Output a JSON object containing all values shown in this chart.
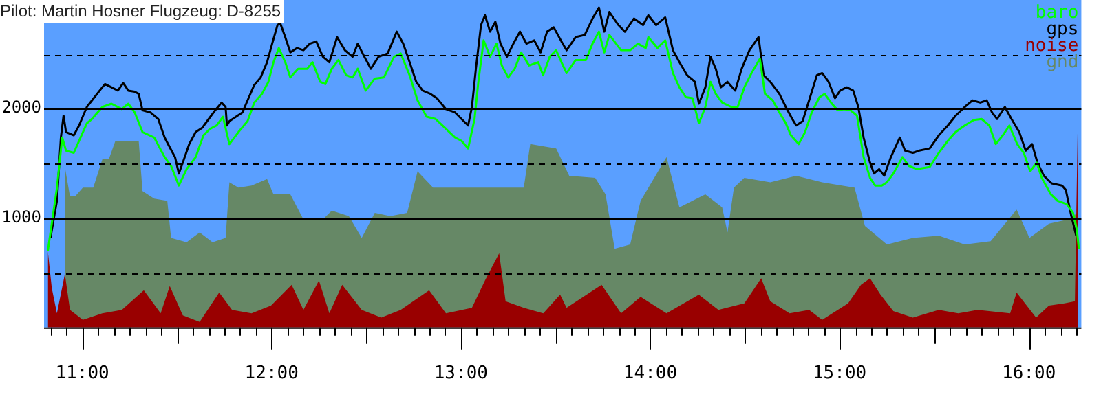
{
  "chart_data": {
    "type": "line",
    "title": "Pilot: Martin Hosner Flugzeug: D-8255",
    "xlim": [
      10.798,
      16.277
    ],
    "ylim": [
      0,
      3000
    ],
    "xticks": [
      {
        "value": 10.8333,
        "label": null
      },
      {
        "value": 10.9167,
        "label": null
      },
      {
        "value": 11,
        "label": "11:00"
      },
      {
        "value": 11.0833,
        "label": null
      },
      {
        "value": 11.1667,
        "label": null
      },
      {
        "value": 11.25,
        "label": null
      },
      {
        "value": 11.3333,
        "label": null
      },
      {
        "value": 11.4167,
        "label": null
      },
      {
        "value": 11.5,
        "label": null
      },
      {
        "value": 11.5833,
        "label": null
      },
      {
        "value": 11.6667,
        "label": null
      },
      {
        "value": 11.75,
        "label": null
      },
      {
        "value": 11.8333,
        "label": null
      },
      {
        "value": 11.9167,
        "label": null
      },
      {
        "value": 12,
        "label": "12:00"
      },
      {
        "value": 12.0833,
        "label": null
      },
      {
        "value": 12.1667,
        "label": null
      },
      {
        "value": 12.25,
        "label": null
      },
      {
        "value": 12.3333,
        "label": null
      },
      {
        "value": 12.4167,
        "label": null
      },
      {
        "value": 12.5,
        "label": null
      },
      {
        "value": 12.5833,
        "label": null
      },
      {
        "value": 12.6667,
        "label": null
      },
      {
        "value": 12.75,
        "label": null
      },
      {
        "value": 12.8333,
        "label": null
      },
      {
        "value": 12.9167,
        "label": null
      },
      {
        "value": 13,
        "label": "13:00"
      },
      {
        "value": 13.0833,
        "label": null
      },
      {
        "value": 13.1667,
        "label": null
      },
      {
        "value": 13.25,
        "label": null
      },
      {
        "value": 13.3333,
        "label": null
      },
      {
        "value": 13.4167,
        "label": null
      },
      {
        "value": 13.5,
        "label": null
      },
      {
        "value": 13.5833,
        "label": null
      },
      {
        "value": 13.6667,
        "label": null
      },
      {
        "value": 13.75,
        "label": null
      },
      {
        "value": 13.8333,
        "label": null
      },
      {
        "value": 13.9167,
        "label": null
      },
      {
        "value": 14,
        "label": "14:00"
      },
      {
        "value": 14.0833,
        "label": null
      },
      {
        "value": 14.1667,
        "label": null
      },
      {
        "value": 14.25,
        "label": null
      },
      {
        "value": 14.3333,
        "label": null
      },
      {
        "value": 14.4167,
        "label": null
      },
      {
        "value": 14.5,
        "label": null
      },
      {
        "value": 14.5833,
        "label": null
      },
      {
        "value": 14.6667,
        "label": null
      },
      {
        "value": 14.75,
        "label": null
      },
      {
        "value": 14.8333,
        "label": null
      },
      {
        "value": 14.9167,
        "label": null
      },
      {
        "value": 15,
        "label": "15:00"
      },
      {
        "value": 15.0833,
        "label": null
      },
      {
        "value": 15.1667,
        "label": null
      },
      {
        "value": 15.25,
        "label": null
      },
      {
        "value": 15.3333,
        "label": null
      },
      {
        "value": 15.4167,
        "label": null
      },
      {
        "value": 15.5,
        "label": null
      },
      {
        "value": 15.5833,
        "label": null
      },
      {
        "value": 15.6667,
        "label": null
      },
      {
        "value": 15.75,
        "label": null
      },
      {
        "value": 15.8333,
        "label": null
      },
      {
        "value": 15.9167,
        "label": null
      },
      {
        "value": 16,
        "label": "16:00"
      },
      {
        "value": 16.0833,
        "label": null
      },
      {
        "value": 16.1667,
        "label": null
      },
      {
        "value": 16.25,
        "label": null
      }
    ],
    "yticks": [
      {
        "value": 500,
        "label": null
      },
      1000,
      {
        "value": 1500,
        "label": null
      },
      2000,
      {
        "value": 2500,
        "label": null
      }
    ],
    "grid": "y",
    "legend": "top right",
    "series": [
      {
        "name": "baro",
        "color": "#00ff00",
        "type": "line",
        "x": [
          10.818,
          10.866,
          10.894,
          10.914,
          10.955,
          11.024,
          11.051,
          11.106,
          11.154,
          11.209,
          11.243,
          11.277,
          11.318,
          11.38,
          11.435,
          11.469,
          11.51,
          11.551,
          11.599,
          11.64,
          11.675,
          11.709,
          11.743,
          11.777,
          11.825,
          11.873,
          11.908,
          11.949,
          11.983,
          12.01,
          12.038,
          12.072,
          12.099,
          12.14,
          12.188,
          12.216,
          12.257,
          12.284,
          12.318,
          12.353,
          12.394,
          12.428,
          12.455,
          12.497,
          12.545,
          12.593,
          12.647,
          12.682,
          12.729,
          12.771,
          12.819,
          12.866,
          12.921,
          12.969,
          13.003,
          13.038,
          13.072,
          13.092,
          13.12,
          13.154,
          13.188,
          13.216,
          13.25,
          13.284,
          13.318,
          13.36,
          13.408,
          13.434,
          13.469,
          13.503,
          13.531,
          13.558,
          13.606,
          13.66,
          13.695,
          13.729,
          13.757,
          13.784,
          13.846,
          13.894,
          13.935,
          13.976,
          13.99,
          14.038,
          14.079,
          14.12,
          14.154,
          14.188,
          14.223,
          14.257,
          14.291,
          14.318,
          14.346,
          14.38,
          14.428,
          14.462,
          14.497,
          14.538,
          14.579,
          14.606,
          14.647,
          14.682,
          14.716,
          14.743,
          14.784,
          14.818,
          14.853,
          14.894,
          14.921,
          14.955,
          14.99,
          15.024,
          15.058,
          15.092,
          15.127,
          15.161,
          15.188,
          15.223,
          15.25,
          15.284,
          15.332,
          15.366,
          15.408,
          15.476,
          15.524,
          15.572,
          15.613,
          15.661,
          15.709,
          15.75,
          15.791,
          15.825,
          15.862,
          15.897,
          15.938,
          15.973,
          16.007,
          16.041,
          16.068,
          16.116,
          16.151,
          16.199,
          16.233,
          16.253,
          16.264
        ],
        "values": [
          700,
          1280,
          1740,
          1620,
          1600,
          1870,
          1910,
          2020,
          2050,
          2000,
          2050,
          1970,
          1790,
          1740,
          1560,
          1480,
          1300,
          1450,
          1560,
          1760,
          1820,
          1850,
          1930,
          1680,
          1790,
          1890,
          2060,
          2140,
          2250,
          2430,
          2560,
          2430,
          2290,
          2370,
          2370,
          2430,
          2250,
          2230,
          2370,
          2450,
          2310,
          2290,
          2370,
          2170,
          2280,
          2290,
          2480,
          2510,
          2310,
          2080,
          1930,
          1910,
          1820,
          1740,
          1710,
          1640,
          1910,
          2250,
          2630,
          2480,
          2600,
          2400,
          2290,
          2370,
          2520,
          2400,
          2430,
          2310,
          2480,
          2540,
          2430,
          2330,
          2450,
          2450,
          2600,
          2710,
          2520,
          2680,
          2540,
          2540,
          2600,
          2560,
          2660,
          2560,
          2630,
          2330,
          2200,
          2110,
          2100,
          1870,
          2020,
          2250,
          2140,
          2060,
          2020,
          2020,
          2200,
          2340,
          2460,
          2140,
          2080,
          1970,
          1870,
          1760,
          1680,
          1790,
          1970,
          2110,
          2140,
          2060,
          1990,
          2000,
          1990,
          1940,
          1560,
          1370,
          1300,
          1300,
          1330,
          1410,
          1560,
          1480,
          1450,
          1470,
          1600,
          1710,
          1790,
          1850,
          1900,
          1910,
          1850,
          1680,
          1760,
          1850,
          1680,
          1600,
          1430,
          1510,
          1370,
          1220,
          1160,
          1130,
          1050,
          900,
          720
        ]
      },
      {
        "name": "gps",
        "color": "#000000",
        "type": "line",
        "x": [
          10.832,
          10.866,
          10.887,
          10.901,
          10.914,
          10.955,
          10.983,
          11.024,
          11.051,
          11.092,
          11.12,
          11.154,
          11.188,
          11.216,
          11.243,
          11.277,
          11.298,
          11.318,
          11.36,
          11.401,
          11.435,
          11.462,
          11.49,
          11.51,
          11.531,
          11.565,
          11.599,
          11.634,
          11.668,
          11.702,
          11.736,
          11.757,
          11.764,
          11.777,
          11.812,
          11.846,
          11.873,
          11.908,
          11.942,
          11.976,
          12.003,
          12.031,
          12.045,
          12.072,
          12.099,
          12.134,
          12.168,
          12.202,
          12.236,
          12.271,
          12.305,
          12.346,
          12.387,
          12.428,
          12.455,
          12.49,
          12.524,
          12.565,
          12.613,
          12.661,
          12.695,
          12.729,
          12.764,
          12.798,
          12.839,
          12.873,
          12.921,
          12.969,
          13.003,
          13.038,
          13.058,
          13.079,
          13.106,
          13.127,
          13.154,
          13.182,
          13.209,
          13.243,
          13.277,
          13.312,
          13.346,
          13.387,
          13.421,
          13.455,
          13.49,
          13.531,
          13.558,
          13.606,
          13.654,
          13.695,
          13.729,
          13.757,
          13.784,
          13.832,
          13.866,
          13.914,
          13.962,
          13.99,
          14.031,
          14.079,
          14.12,
          14.154,
          14.195,
          14.236,
          14.257,
          14.291,
          14.318,
          14.346,
          14.373,
          14.408,
          14.449,
          14.483,
          14.524,
          14.572,
          14.599,
          14.634,
          14.682,
          14.716,
          14.75,
          14.771,
          14.805,
          14.839,
          14.88,
          14.908,
          14.942,
          14.976,
          15.003,
          15.038,
          15.072,
          15.099,
          15.127,
          15.161,
          15.182,
          15.209,
          15.236,
          15.271,
          15.318,
          15.346,
          15.387,
          15.421,
          15.476,
          15.524,
          15.572,
          15.613,
          15.661,
          15.702,
          15.743,
          15.777,
          15.805,
          15.832,
          15.873,
          15.908,
          15.949,
          15.983,
          16.017,
          16.045,
          16.079,
          16.12,
          16.175,
          16.195,
          16.223,
          16.25
        ],
        "values": [
          820,
          1160,
          1740,
          1940,
          1790,
          1760,
          1850,
          2020,
          2080,
          2170,
          2230,
          2200,
          2170,
          2240,
          2170,
          2160,
          2140,
          1990,
          1970,
          1910,
          1740,
          1650,
          1560,
          1410,
          1510,
          1680,
          1790,
          1830,
          1910,
          1990,
          2060,
          2020,
          1850,
          1890,
          1930,
          1970,
          2080,
          2220,
          2290,
          2430,
          2600,
          2770,
          2790,
          2660,
          2520,
          2560,
          2540,
          2600,
          2620,
          2480,
          2430,
          2660,
          2540,
          2480,
          2600,
          2480,
          2370,
          2480,
          2510,
          2710,
          2600,
          2430,
          2250,
          2170,
          2140,
          2100,
          2000,
          1970,
          1910,
          1850,
          2020,
          2370,
          2770,
          2860,
          2710,
          2800,
          2600,
          2480,
          2600,
          2710,
          2600,
          2630,
          2520,
          2710,
          2750,
          2620,
          2540,
          2660,
          2680,
          2830,
          2930,
          2710,
          2890,
          2770,
          2710,
          2830,
          2770,
          2860,
          2770,
          2840,
          2540,
          2430,
          2310,
          2250,
          2050,
          2200,
          2480,
          2370,
          2200,
          2250,
          2170,
          2370,
          2540,
          2660,
          2310,
          2250,
          2140,
          2020,
          1910,
          1850,
          1890,
          2080,
          2310,
          2330,
          2250,
          2100,
          2170,
          2200,
          2170,
          2020,
          1740,
          1510,
          1410,
          1450,
          1390,
          1560,
          1740,
          1620,
          1600,
          1620,
          1640,
          1760,
          1850,
          1940,
          2020,
          2080,
          2060,
          2080,
          1970,
          1910,
          2020,
          1910,
          1790,
          1620,
          1680,
          1510,
          1390,
          1320,
          1300,
          1260,
          1030,
          840
        ]
      },
      {
        "name": "noise",
        "color": "#990000",
        "type": "area",
        "x": [
          10.818,
          10.839,
          10.866,
          10.908,
          10.935,
          11.003,
          11.106,
          11.209,
          11.325,
          11.414,
          11.462,
          11.531,
          11.62,
          11.723,
          11.791,
          11.894,
          11.997,
          12.106,
          12.168,
          12.25,
          12.305,
          12.373,
          12.476,
          12.579,
          12.682,
          12.832,
          12.921,
          13.058,
          13.127,
          13.202,
          13.236,
          13.332,
          13.435,
          13.524,
          13.558,
          13.743,
          13.846,
          13.949,
          14.086,
          14.257,
          14.36,
          14.497,
          14.586,
          14.634,
          14.736,
          14.839,
          14.908,
          15.045,
          15.113,
          15.161,
          15.216,
          15.284,
          15.387,
          15.524,
          15.627,
          15.729,
          15.901,
          15.935,
          16.038,
          16.106,
          16.188,
          16.243,
          16.26
        ],
        "values": [
          700,
          360,
          130,
          490,
          160,
          70,
          130,
          160,
          340,
          130,
          380,
          110,
          50,
          320,
          160,
          130,
          200,
          390,
          160,
          430,
          130,
          390,
          160,
          90,
          160,
          340,
          130,
          180,
          430,
          680,
          240,
          180,
          130,
          300,
          180,
          390,
          130,
          280,
          130,
          300,
          160,
          220,
          450,
          240,
          130,
          160,
          70,
          220,
          390,
          450,
          300,
          150,
          90,
          160,
          130,
          160,
          130,
          320,
          90,
          200,
          220,
          240,
          2080
        ]
      },
      {
        "name": "gnd",
        "color": "#668866",
        "type": "area",
        "x": [
          10.908,
          10.935,
          10.962,
          11.003,
          11.058,
          11.106,
          11.14,
          11.175,
          11.243,
          11.298,
          11.318,
          11.38,
          11.449,
          11.469,
          11.551,
          11.62,
          11.688,
          11.757,
          11.777,
          11.825,
          11.894,
          11.976,
          12.01,
          12.099,
          12.168,
          12.271,
          12.318,
          12.408,
          12.476,
          12.545,
          12.627,
          12.716,
          12.771,
          12.853,
          12.99,
          13.161,
          13.332,
          13.366,
          13.503,
          13.572,
          13.709,
          13.764,
          13.812,
          13.894,
          13.949,
          14.086,
          14.154,
          14.291,
          14.38,
          14.408,
          14.442,
          14.497,
          14.634,
          14.771,
          14.908,
          15.079,
          15.134,
          15.25,
          15.387,
          15.524,
          15.661,
          15.798,
          15.935,
          16.003,
          16.106,
          16.209,
          16.257
        ],
        "values": [
          1470,
          1200,
          1200,
          1280,
          1280,
          1540,
          1540,
          1710,
          1710,
          1710,
          1250,
          1180,
          1160,
          820,
          780,
          870,
          780,
          820,
          1330,
          1280,
          1300,
          1360,
          1220,
          1220,
          990,
          990,
          1070,
          1020,
          820,
          1050,
          1020,
          1050,
          1430,
          1280,
          1280,
          1280,
          1280,
          1680,
          1640,
          1390,
          1370,
          1220,
          720,
          760,
          1160,
          1560,
          1100,
          1220,
          1100,
          870,
          1280,
          1370,
          1330,
          1390,
          1330,
          1280,
          930,
          760,
          820,
          840,
          760,
          790,
          1080,
          820,
          950,
          990,
          1050
        ]
      }
    ]
  }
}
